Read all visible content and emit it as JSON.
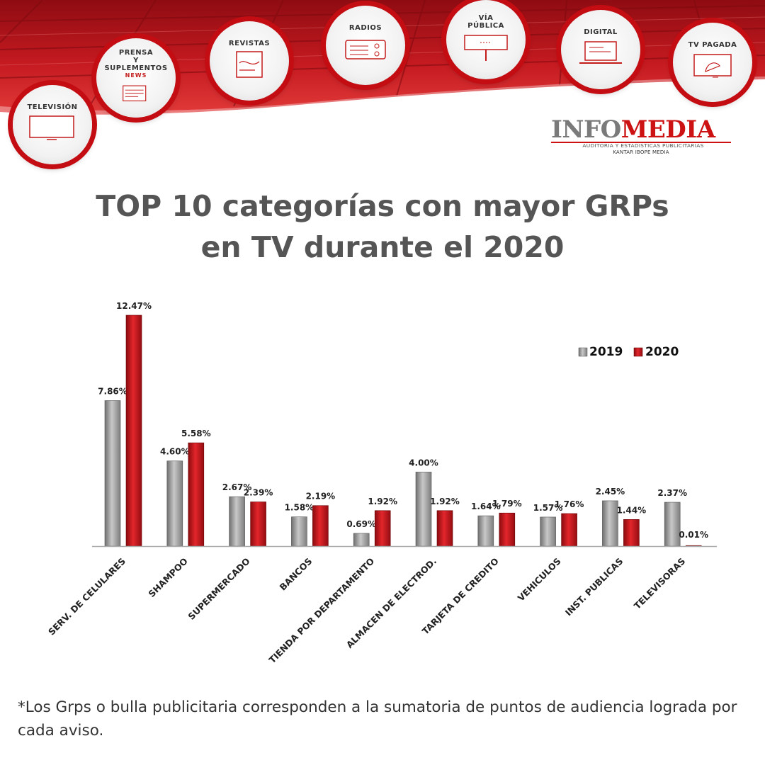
{
  "header": {
    "media": [
      {
        "key": "television",
        "label": "TELEVISIÓN",
        "icon": "tv-screen-icon"
      },
      {
        "key": "press",
        "label": "PRENSA\nY SUPLEMENTOS",
        "icon": "newspaper-icon",
        "sublabel": "NEWS"
      },
      {
        "key": "magazines",
        "label": "REVISTAS",
        "icon": "magazine-icon"
      },
      {
        "key": "radio",
        "label": "RADIOS",
        "icon": "radio-icon"
      },
      {
        "key": "outdoor",
        "label": "VÍA\nPÚBLICA",
        "icon": "billboard-icon"
      },
      {
        "key": "digital",
        "label": "DIGITAL",
        "icon": "laptop-icon"
      },
      {
        "key": "paytv",
        "label": "TV PAGADA",
        "icon": "satellite-dish-icon"
      }
    ],
    "logo": {
      "part1": "INFO",
      "part2": "MEDIA",
      "tagline": "AUDITORIA Y ESTADISTICAS PUBLICITARIAS",
      "partner": "KANTAR IBOPE MEDIA"
    }
  },
  "title": {
    "line1": "TOP 10 categorías con mayor GRPs",
    "line2": "en TV durante el 2020"
  },
  "colors": {
    "series_2019": "#a3a3a3",
    "series_2020": "#c8141a",
    "banner_red": "#b5121b",
    "title_gray": "#555555"
  },
  "chart_data": {
    "type": "bar",
    "categories": [
      "SERV. DE CELULARES",
      "SHAMPOO",
      "SUPERMERCADO",
      "BANCOS",
      "TIENDA POR DEPARTAMENTO",
      "ALMACEN DE ELECTROD.",
      "TARJETA DE CREDITO",
      "VEHICULOS",
      "INST. PUBLICAS",
      "TELEVISORAS"
    ],
    "series": [
      {
        "name": "2019",
        "values": [
          7.86,
          4.6,
          2.67,
          1.58,
          0.69,
          4.0,
          1.64,
          1.57,
          2.45,
          2.37
        ],
        "labels": [
          "7.86%",
          "4.60%",
          "2.67%",
          "1.58%",
          "0.69%",
          "4.00%",
          "1.64%",
          "1.57%",
          "2.45%",
          "2.37%"
        ]
      },
      {
        "name": "2020",
        "values": [
          12.47,
          5.58,
          2.39,
          2.19,
          1.92,
          1.92,
          1.79,
          1.76,
          1.44,
          0.01
        ],
        "labels": [
          "12.47%",
          "5.58%",
          "2.39%",
          "2.19%",
          "1.92%",
          "1.92%",
          "1.79%",
          "1.76%",
          "1.44%",
          "0.01%"
        ]
      }
    ],
    "ylim": [
      0,
      12.47
    ],
    "grid": false,
    "legend_position": "top-right"
  },
  "footnote": "*Los Grps o bulla publicitaria corresponden a la sumatoria de puntos de audiencia lograda por cada aviso."
}
